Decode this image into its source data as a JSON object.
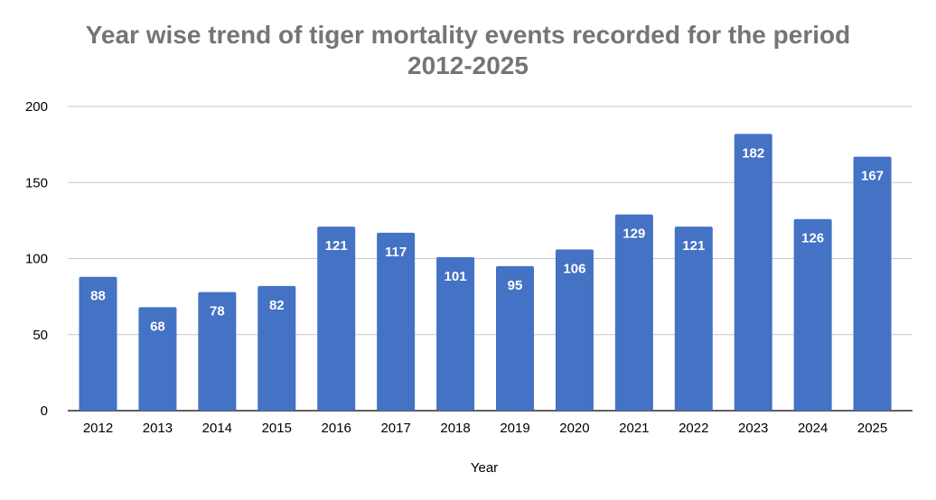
{
  "chart_data": {
    "type": "bar",
    "title_line1": "Year wise trend of tiger mortality events recorded for the period",
    "title_line2": "2012-2025",
    "xlabel": "Year",
    "ylabel": "",
    "categories": [
      "2012",
      "2013",
      "2014",
      "2015",
      "2016",
      "2017",
      "2018",
      "2019",
      "2020",
      "2021",
      "2022",
      "2023",
      "2024",
      "2025"
    ],
    "values": [
      88,
      68,
      78,
      82,
      121,
      117,
      101,
      95,
      106,
      129,
      121,
      182,
      126,
      167
    ],
    "ylim": [
      0,
      200
    ],
    "yticks": [
      0,
      50,
      100,
      150,
      200
    ],
    "grid": true,
    "legend": "none",
    "bar_color": "#4472C4",
    "grid_color": "#C8C8C8",
    "data_labels": true
  }
}
